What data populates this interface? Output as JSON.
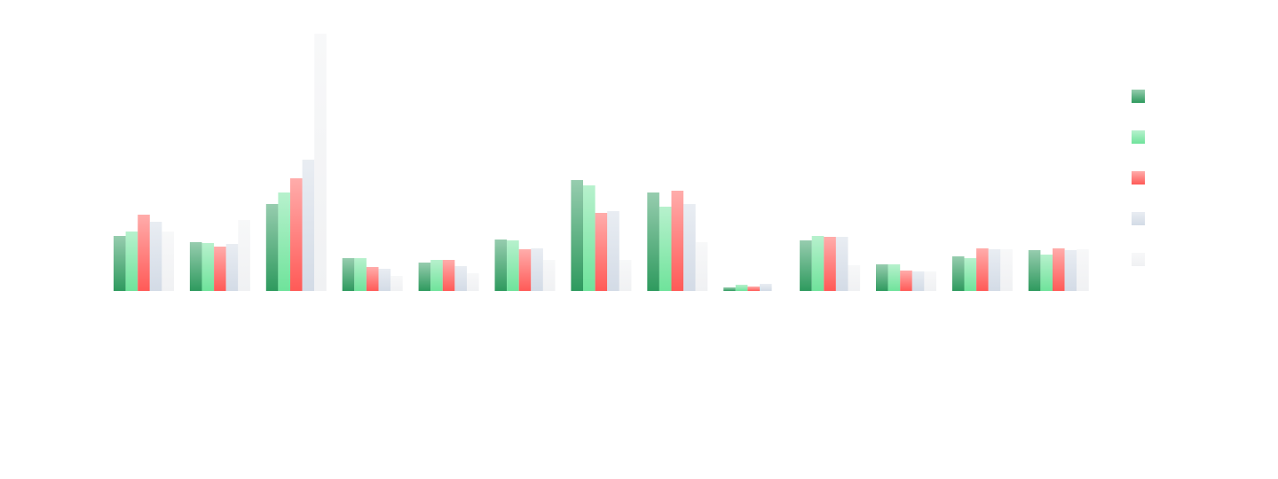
{
  "chart_data": {
    "type": "bar",
    "categories": [
      null,
      null,
      null,
      null,
      null,
      null,
      null,
      null,
      null,
      null,
      null,
      null,
      null
    ],
    "series": [
      {
        "color": "#2e9a5e",
        "values": [
          62,
          55,
          98,
          37,
          32,
          58,
          125,
          111,
          4,
          57,
          30,
          39,
          46
        ]
      },
      {
        "color": "#6fe39b",
        "values": [
          67,
          54,
          111,
          37,
          35,
          57,
          119,
          95,
          7,
          62,
          30,
          37,
          41
        ]
      },
      {
        "color": "#ff5a57",
        "values": [
          86,
          50,
          127,
          27,
          35,
          47,
          88,
          113,
          5,
          61,
          23,
          48,
          48
        ]
      },
      {
        "color": "#d3dbe6",
        "values": [
          78,
          53,
          148,
          25,
          28,
          48,
          90,
          98,
          8,
          61,
          22,
          47,
          46
        ]
      },
      {
        "color": "#f0f1f3",
        "values": [
          67,
          80,
          290,
          17,
          20,
          35,
          35,
          55,
          0,
          29,
          22,
          47,
          47
        ]
      }
    ],
    "ylim": [
      0,
      300
    ],
    "legend": "right"
  }
}
